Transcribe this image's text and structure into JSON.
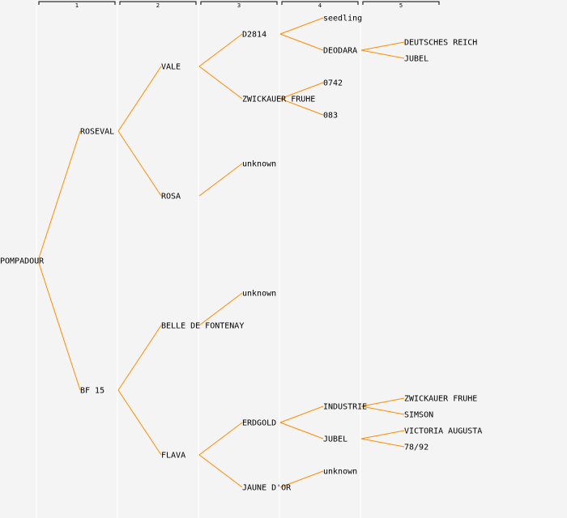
{
  "colors": {
    "background": "#f4f4f4",
    "connector": "#ff8c00",
    "column_divider": "#ffffff",
    "header_bracket": "#000000"
  },
  "generations": [
    "1",
    "2",
    "3",
    "4",
    "5"
  ],
  "pedigree": {
    "name": "POMPADOUR",
    "parents": [
      {
        "name": "ROSEVAL",
        "parents": [
          {
            "name": "VALE",
            "parents": [
              {
                "name": "D2814",
                "parents": [
                  {
                    "name": "seedling"
                  },
                  {
                    "name": "DEODARA",
                    "parents": [
                      {
                        "name": "DEUTSCHES REICH"
                      },
                      {
                        "name": "JUBEL"
                      }
                    ]
                  }
                ]
              },
              {
                "name": "ZWICKAUER FRUHE",
                "parents": [
                  {
                    "name": "0742"
                  },
                  {
                    "name": "083"
                  }
                ]
              }
            ]
          },
          {
            "name": "ROSA",
            "parents": [
              {
                "name": "unknown"
              }
            ]
          }
        ]
      },
      {
        "name": "BF 15",
        "parents": [
          {
            "name": "BELLE DE FONTENAY",
            "parents": [
              {
                "name": "unknown"
              }
            ]
          },
          {
            "name": "FLAVA",
            "parents": [
              {
                "name": "ERDGOLD",
                "parents": [
                  {
                    "name": "INDUSTRIE",
                    "parents": [
                      {
                        "name": "ZWICKAUER FRUHE"
                      },
                      {
                        "name": "SIMSON"
                      }
                    ]
                  },
                  {
                    "name": "JUBEL",
                    "parents": [
                      {
                        "name": "VICTORIA AUGUSTA"
                      },
                      {
                        "name": "78/92"
                      }
                    ]
                  }
                ]
              },
              {
                "name": "JAUNE D'OR",
                "parents": [
                  {
                    "name": "unknown"
                  }
                ]
              }
            ]
          }
        ]
      }
    ]
  }
}
